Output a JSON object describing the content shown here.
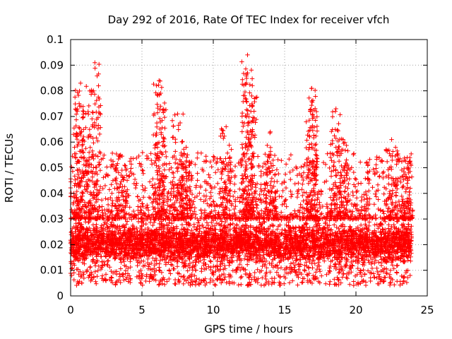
{
  "chart_data": {
    "type": "scatter",
    "title": "Day 292 of 2016, Rate Of TEC Index for receiver vfch",
    "xlabel": "GPS time / hours",
    "ylabel": "ROTI / TECUs",
    "xlim": [
      0,
      25
    ],
    "ylim": [
      0,
      0.1
    ],
    "xticks": [
      0,
      5,
      10,
      15,
      20,
      25
    ],
    "xtick_labels": [
      "0",
      "5",
      "10",
      "15",
      "20",
      "25"
    ],
    "yticks": [
      0,
      0.01,
      0.02,
      0.03,
      0.04,
      0.05,
      0.06,
      0.07,
      0.08,
      0.09,
      0.1
    ],
    "ytick_labels": [
      "0",
      "0.01",
      "0.02",
      "0.03",
      "0.04",
      "0.05",
      "0.06",
      "0.07",
      "0.08",
      "0.09",
      "0.1"
    ],
    "grid": true,
    "marker": "+",
    "color": "#ff0000",
    "x_data_range": [
      0,
      23.9
    ],
    "typical_band": [
      0.01,
      0.03
    ],
    "peaks": [
      {
        "x": 0.7,
        "y": 0.083
      },
      {
        "x": 0.6,
        "y": 0.075
      },
      {
        "x": 1.7,
        "y": 0.091
      },
      {
        "x": 1.6,
        "y": 0.08
      },
      {
        "x": 6.2,
        "y": 0.084
      },
      {
        "x": 6.3,
        "y": 0.074
      },
      {
        "x": 7.5,
        "y": 0.071
      },
      {
        "x": 12.4,
        "y": 0.094
      },
      {
        "x": 12.4,
        "y": 0.087
      },
      {
        "x": 12.7,
        "y": 0.078
      },
      {
        "x": 16.9,
        "y": 0.081
      },
      {
        "x": 16.9,
        "y": 0.076
      },
      {
        "x": 18.6,
        "y": 0.073
      },
      {
        "x": 19.1,
        "y": 0.061
      },
      {
        "x": 22.5,
        "y": 0.061
      },
      {
        "x": 3.5,
        "y": 0.055
      },
      {
        "x": 8.1,
        "y": 0.058
      },
      {
        "x": 10.9,
        "y": 0.066
      },
      {
        "x": 14.0,
        "y": 0.064
      },
      {
        "x": 23.6,
        "y": 0.054
      }
    ]
  }
}
